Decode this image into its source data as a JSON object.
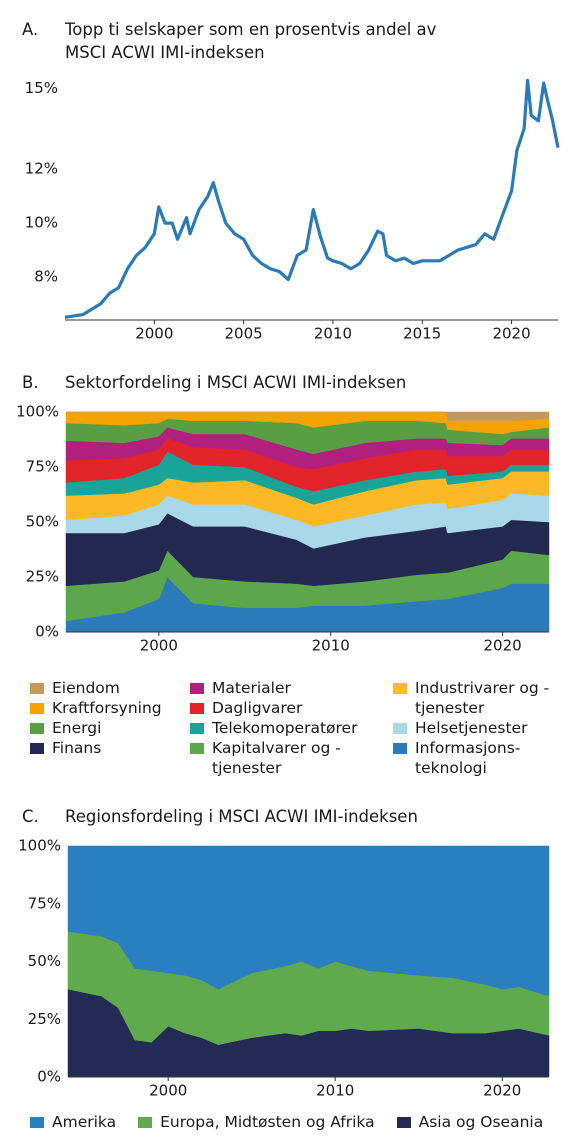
{
  "chart_data": [
    {
      "type": "line",
      "panel": "A.",
      "title": "Topp ti selskaper som en prosentvis andel av MSCI ACWI IMI-indeksen",
      "color": "#2a7ab8",
      "x": [
        1995,
        1996,
        1997,
        1997.5,
        1998,
        1998.5,
        1999,
        1999.5,
        2000,
        2000.25,
        2000.6,
        2001,
        2001.3,
        2001.8,
        2002,
        2002.5,
        2003,
        2003.3,
        2003.6,
        2004,
        2004.5,
        2005,
        2005.5,
        2006,
        2006.5,
        2007,
        2007.5,
        2008,
        2008.5,
        2008.9,
        2009.3,
        2009.7,
        2010,
        2010.5,
        2011,
        2011.5,
        2012,
        2012.5,
        2012.8,
        2013,
        2013.5,
        2014,
        2014.5,
        2015,
        2015.5,
        2016,
        2016.5,
        2017,
        2017.5,
        2018,
        2018.5,
        2019,
        2019.5,
        2020,
        2020.3,
        2020.7,
        2020.9,
        2021.1,
        2021.5,
        2021.8,
        2022,
        2022.3,
        2022.6
      ],
      "values": [
        6.5,
        6.6,
        7.0,
        7.4,
        7.6,
        8.3,
        8.8,
        9.1,
        9.6,
        10.6,
        10.0,
        10.0,
        9.4,
        10.2,
        9.6,
        10.5,
        11.0,
        11.5,
        10.8,
        10.0,
        9.6,
        9.4,
        8.8,
        8.5,
        8.3,
        8.2,
        7.9,
        8.8,
        9.0,
        10.5,
        9.5,
        8.7,
        8.6,
        8.5,
        8.3,
        8.5,
        9.0,
        9.7,
        9.6,
        8.8,
        8.6,
        8.7,
        8.5,
        8.6,
        8.6,
        8.6,
        8.8,
        9.0,
        9.1,
        9.2,
        9.6,
        9.4,
        10.3,
        11.2,
        12.7,
        13.5,
        15.3,
        14.0,
        13.8,
        15.2,
        14.6,
        13.8,
        12.8
      ],
      "xlim": [
        1995,
        2022.6
      ],
      "ylim": [
        6.4,
        15.5
      ],
      "xticks": [
        2000,
        2005,
        2010,
        2015,
        2020
      ],
      "yticks": [
        {
          "value": 8,
          "label": "8%"
        },
        {
          "value": 10,
          "label": "10%"
        },
        {
          "value": 12,
          "label": "12%"
        },
        {
          "value": 15,
          "label": "15%"
        }
      ]
    },
    {
      "type": "stacked_area",
      "panel": "B.",
      "title": "Sektorfordeling i MSCI ACWI IMI-indeksen",
      "x": [
        1994.6,
        1998,
        2000,
        2000.5,
        2002,
        2005,
        2008,
        2009,
        2012,
        2015,
        2016.7,
        2016.8,
        2020,
        2020.5,
        2022.7
      ],
      "xlim": [
        1994.6,
        2022.7
      ],
      "ylim": [
        0,
        100
      ],
      "xticks": [
        2000,
        2010,
        2020
      ],
      "yticks": [
        {
          "value": 0,
          "label": "0%"
        },
        {
          "value": 25,
          "label": "25%"
        },
        {
          "value": 50,
          "label": "50%"
        },
        {
          "value": 75,
          "label": "75%"
        },
        {
          "value": 100,
          "label": "100%"
        }
      ],
      "series": [
        {
          "name": "Eiendom",
          "color": "#c39a5b",
          "values": [
            0,
            0,
            0,
            0,
            0,
            0,
            0,
            0,
            0,
            0,
            0,
            4,
            4,
            4,
            3
          ]
        },
        {
          "name": "Kraftforsyning",
          "color": "#f4a400",
          "values": [
            5,
            6,
            5,
            3,
            4,
            4,
            5,
            7,
            4,
            4,
            5,
            4,
            6,
            5,
            4
          ]
        },
        {
          "name": "Energi",
          "color": "#5a9e44",
          "values": [
            8,
            8,
            6,
            4,
            6,
            6,
            12,
            12,
            10,
            8,
            7,
            6,
            5,
            3,
            5
          ]
        },
        {
          "name": "Finans",
          "color": "#232850",
          "values": [
            24,
            22,
            21,
            17,
            23,
            25,
            20,
            17,
            20,
            20,
            21,
            18,
            15,
            14,
            15
          ]
        },
        {
          "name": "Materialer",
          "color": "#b1207f",
          "values": [
            9,
            7,
            6,
            5,
            6,
            7,
            8,
            7,
            7,
            5,
            5,
            6,
            5,
            5,
            5
          ]
        },
        {
          "name": "Dagligvarer",
          "color": "#e2232a",
          "values": [
            10,
            9,
            7,
            6,
            8,
            8,
            9,
            10,
            10,
            10,
            9,
            9,
            7,
            7,
            7
          ]
        },
        {
          "name": "Telekomoperatører",
          "color": "#19a49a",
          "values": [
            6,
            7,
            9,
            12,
            8,
            6,
            5,
            6,
            5,
            4,
            4,
            4,
            3,
            3,
            3
          ]
        },
        {
          "name": "Kapitalvarer og -tjenester",
          "color": "#5ca64c",
          "values": [
            16,
            14,
            13,
            12,
            12,
            12,
            11,
            9,
            11,
            12,
            12,
            12,
            13,
            15,
            13
          ]
        },
        {
          "name": "Industrivarer og -tjenester",
          "color": "#fbba25",
          "values": [
            11,
            10,
            9,
            8,
            10,
            11,
            10,
            10,
            11,
            11,
            11,
            11,
            10,
            10,
            11
          ]
        },
        {
          "name": "Helsetjenester",
          "color": "#a8d8ea",
          "values": [
            6,
            8,
            9,
            8,
            10,
            10,
            9,
            10,
            10,
            12,
            11,
            11,
            12,
            12,
            12
          ]
        },
        {
          "name": "Informasjons-teknologi",
          "color": "#2b7bba",
          "values": [
            5,
            9,
            15,
            25,
            13,
            11,
            11,
            12,
            12,
            14,
            15,
            15,
            20,
            22,
            22
          ]
        }
      ]
    },
    {
      "type": "stacked_area",
      "panel": "C.",
      "title": "Regionsfordeling i MSCI ACWI IMI-indeksen",
      "x": [
        1994,
        1996,
        1997,
        1998,
        1999,
        2000,
        2001,
        2002,
        2003,
        2005,
        2007,
        2008,
        2009,
        2010,
        2011,
        2012,
        2015,
        2017,
        2019,
        2020,
        2021,
        2022.8
      ],
      "xlim": [
        1994,
        2022.8
      ],
      "ylim": [
        0,
        100
      ],
      "xticks": [
        2000,
        2010,
        2020
      ],
      "yticks": [
        {
          "value": 0,
          "label": "0%"
        },
        {
          "value": 25,
          "label": "25%"
        },
        {
          "value": 50,
          "label": "50%"
        },
        {
          "value": 75,
          "label": "75%"
        },
        {
          "value": 100,
          "label": "100%"
        }
      ],
      "series": [
        {
          "name": "Amerika",
          "color": "#2a7fc0",
          "values": [
            37,
            39,
            42,
            53,
            54,
            55,
            56,
            58,
            62,
            55,
            52,
            50,
            53,
            50,
            52,
            54,
            56,
            57,
            60,
            62,
            61,
            65
          ]
        },
        {
          "name": "Europa, Midtøsten og Afrika",
          "color": "#5faa4c",
          "values": [
            25,
            26,
            28,
            31,
            31,
            23,
            25,
            25,
            24,
            28,
            29,
            32,
            27,
            30,
            27,
            26,
            23,
            24,
            21,
            18,
            18,
            17
          ]
        },
        {
          "name": "Asia og Oseania",
          "color": "#232b55",
          "values": [
            38,
            35,
            30,
            16,
            15,
            22,
            19,
            17,
            14,
            17,
            19,
            18,
            20,
            20,
            21,
            20,
            21,
            19,
            19,
            20,
            21,
            18
          ]
        }
      ]
    }
  ]
}
